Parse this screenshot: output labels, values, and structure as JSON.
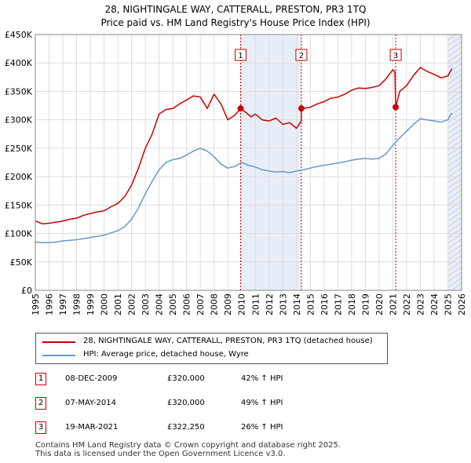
{
  "title": {
    "line1": "28, NIGHTINGALE WAY, CATTERALL, PRESTON, PR3 1TQ",
    "line2": "Price paid vs. HM Land Registry's House Price Index (HPI)"
  },
  "colors": {
    "price_line": "#cc0000",
    "hpi_line": "#6699cc",
    "shade": "#e8eef8",
    "grid": "#dddddd",
    "marker_line": "#cc0000"
  },
  "legend": {
    "price_label": "28, NIGHTINGALE WAY, CATTERALL, PRESTON, PR3 1TQ (detached house)",
    "hpi_label": "HPI: Average price, detached house, Wyre"
  },
  "transactions": [
    {
      "num": "1",
      "date": "08-DEC-2009",
      "price": "£320,000",
      "hpi": "42% ↑ HPI"
    },
    {
      "num": "2",
      "date": "07-MAY-2014",
      "price": "£320,000",
      "hpi": "49% ↑ HPI"
    },
    {
      "num": "3",
      "date": "19-MAR-2021",
      "price": "£322,250",
      "hpi": "26% ↑ HPI"
    }
  ],
  "footer": {
    "line1": "Contains HM Land Registry data © Crown copyright and database right 2025.",
    "line2": "This data is licensed under the Open Government Licence v3.0."
  },
  "chart_data": {
    "type": "line",
    "title": "28, NIGHTINGALE WAY, CATTERALL, PRESTON, PR3 1TQ",
    "subtitle": "Price paid vs. HM Land Registry's House Price Index (HPI)",
    "xlabel": "",
    "ylabel": "",
    "xlim": [
      1995,
      2026
    ],
    "ylim": [
      0,
      450000
    ],
    "x_ticks": [
      1995,
      1996,
      1997,
      1998,
      1999,
      2000,
      2001,
      2002,
      2003,
      2004,
      2005,
      2006,
      2007,
      2008,
      2009,
      2010,
      2011,
      2012,
      2013,
      2014,
      2015,
      2016,
      2017,
      2018,
      2019,
      2020,
      2021,
      2022,
      2023,
      2024,
      2025,
      2026
    ],
    "y_ticks": [
      0,
      50000,
      100000,
      150000,
      200000,
      250000,
      300000,
      350000,
      400000,
      450000
    ],
    "y_tick_labels": [
      "£0",
      "£50K",
      "£100K",
      "£150K",
      "£200K",
      "£250K",
      "£300K",
      "£350K",
      "£400K",
      "£450K"
    ],
    "grid": true,
    "legend_position": "below",
    "shaded_ranges": [
      [
        2009.93,
        2014.35
      ],
      [
        2025.0,
        2026.0
      ]
    ],
    "series": [
      {
        "name": "28, NIGHTINGALE WAY, CATTERALL, PRESTON, PR3 1TQ (detached house)",
        "color": "#cc0000",
        "x": [
          1995,
          1995.5,
          1996,
          1996.5,
          1997,
          1997.5,
          1998,
          1998.5,
          1999,
          1999.5,
          2000,
          2000.5,
          2001,
          2001.5,
          2002,
          2002.5,
          2003,
          2003.5,
          2004,
          2004.5,
          2005,
          2005.5,
          2006,
          2006.5,
          2007,
          2007.5,
          2008,
          2008.5,
          2009,
          2009.5,
          2009.93,
          2010.3,
          2010.7,
          2011,
          2011.5,
          2012,
          2012.5,
          2013,
          2013.5,
          2014,
          2014.34,
          2014.35,
          2015,
          2015.5,
          2016,
          2016.5,
          2017,
          2017.5,
          2018,
          2018.5,
          2019,
          2019.5,
          2020,
          2020.5,
          2021.0,
          2021.15,
          2021.21,
          2021.5,
          2022,
          2022.5,
          2023,
          2023.5,
          2024,
          2024.5,
          2025,
          2025.3
        ],
        "values": [
          122000,
          117000,
          118000,
          120000,
          122000,
          125000,
          127000,
          132000,
          135000,
          138000,
          140000,
          147000,
          153000,
          165000,
          185000,
          215000,
          250000,
          275000,
          310000,
          318000,
          320000,
          328000,
          335000,
          342000,
          340000,
          320000,
          345000,
          328000,
          300000,
          308000,
          320000,
          313000,
          305000,
          310000,
          300000,
          298000,
          303000,
          292000,
          295000,
          285000,
          298000,
          320000,
          322000,
          328000,
          332000,
          338000,
          340000,
          345000,
          352000,
          356000,
          355000,
          357000,
          360000,
          372000,
          388000,
          385000,
          322250,
          350000,
          360000,
          378000,
          392000,
          385000,
          380000,
          374000,
          377000,
          390000
        ]
      },
      {
        "name": "HPI: Average price, detached house, Wyre",
        "color": "#6699cc",
        "x": [
          1995,
          1995.5,
          1996,
          1996.5,
          1997,
          1997.5,
          1998,
          1998.5,
          1999,
          1999.5,
          2000,
          2000.5,
          2001,
          2001.5,
          2002,
          2002.5,
          2003,
          2003.5,
          2004,
          2004.5,
          2005,
          2005.5,
          2006,
          2006.5,
          2007,
          2007.5,
          2008,
          2008.5,
          2009,
          2009.5,
          2010,
          2010.5,
          2011,
          2011.5,
          2012,
          2012.5,
          2013,
          2013.5,
          2014,
          2014.5,
          2015,
          2015.5,
          2016,
          2016.5,
          2017,
          2017.5,
          2018,
          2018.5,
          2019,
          2019.5,
          2020,
          2020.5,
          2021,
          2021.5,
          2022,
          2022.5,
          2023,
          2023.5,
          2024,
          2024.5,
          2025,
          2025.3
        ],
        "values": [
          85000,
          84000,
          84000,
          85000,
          87000,
          88000,
          89000,
          91000,
          93000,
          95000,
          97000,
          101000,
          105000,
          112000,
          125000,
          145000,
          170000,
          192000,
          212000,
          225000,
          230000,
          232000,
          238000,
          245000,
          250000,
          245000,
          235000,
          222000,
          215000,
          218000,
          225000,
          220000,
          217000,
          212000,
          210000,
          208000,
          209000,
          207000,
          210000,
          212000,
          215000,
          218000,
          220000,
          222000,
          224000,
          226000,
          229000,
          231000,
          232000,
          231000,
          232000,
          240000,
          255000,
          268000,
          280000,
          292000,
          302000,
          300000,
          298000,
          296000,
          300000,
          312000
        ]
      }
    ],
    "annotations": [
      {
        "label": "1",
        "x": 2009.93,
        "value": 320000
      },
      {
        "label": "2",
        "x": 2014.35,
        "value": 320000
      },
      {
        "label": "3",
        "x": 2021.21,
        "value": 322250
      }
    ]
  }
}
